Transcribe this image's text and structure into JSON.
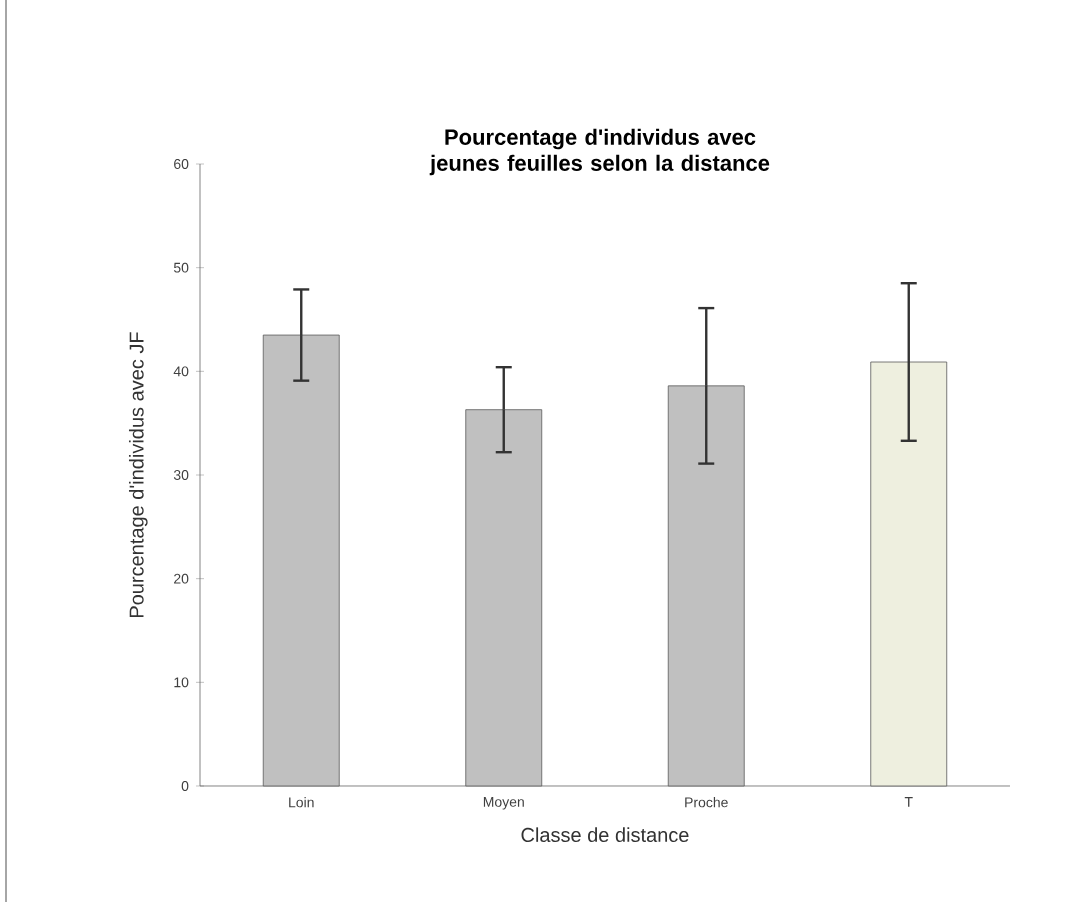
{
  "chart_data": {
    "type": "bar",
    "title": "Pourcentage d'individus avec jeunes feuilles selon la distance",
    "xlabel": "Classe de distance",
    "ylabel": "Pourcentage d'individus avec JF",
    "categories": [
      "Loin",
      "Moyen",
      "Proche",
      "T"
    ],
    "values": [
      43.5,
      36.3,
      38.6,
      40.9
    ],
    "errors": [
      4.4,
      4.1,
      7.5,
      7.6
    ],
    "colors": [
      "#c0c0c0",
      "#c0c0c0",
      "#c0c0c0",
      "#eeefdf"
    ],
    "ylim": [
      0,
      60
    ],
    "yticks": [
      0,
      10,
      20,
      30,
      40,
      50,
      60
    ],
    "grid": false
  }
}
